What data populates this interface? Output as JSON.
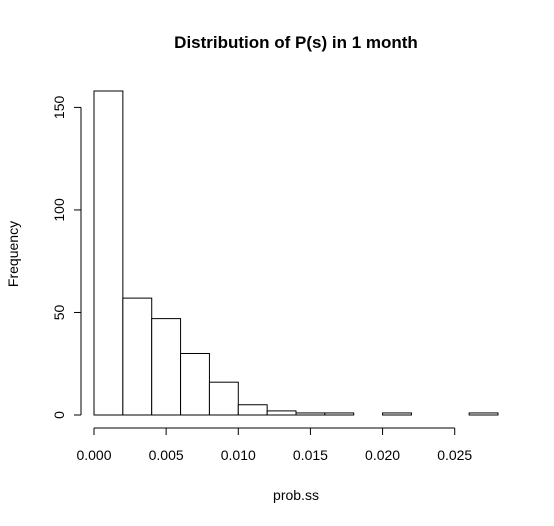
{
  "chart_data": {
    "type": "histogram",
    "title": "Distribution of P(s) in 1 month",
    "xlabel": "prob.ss",
    "ylabel": "Frequency",
    "bin_width": 0.002,
    "bins": [
      {
        "x0": 0.0,
        "x1": 0.002,
        "count": 158
      },
      {
        "x0": 0.002,
        "x1": 0.004,
        "count": 57
      },
      {
        "x0": 0.004,
        "x1": 0.006,
        "count": 47
      },
      {
        "x0": 0.006,
        "x1": 0.008,
        "count": 30
      },
      {
        "x0": 0.008,
        "x1": 0.01,
        "count": 16
      },
      {
        "x0": 0.01,
        "x1": 0.012,
        "count": 5
      },
      {
        "x0": 0.012,
        "x1": 0.014,
        "count": 2
      },
      {
        "x0": 0.014,
        "x1": 0.016,
        "count": 1
      },
      {
        "x0": 0.016,
        "x1": 0.018,
        "count": 1
      },
      {
        "x0": 0.018,
        "x1": 0.02,
        "count": 0
      },
      {
        "x0": 0.02,
        "x1": 0.022,
        "count": 1
      },
      {
        "x0": 0.022,
        "x1": 0.024,
        "count": 0
      },
      {
        "x0": 0.024,
        "x1": 0.026,
        "count": 0
      },
      {
        "x0": 0.026,
        "x1": 0.028,
        "count": 1
      }
    ],
    "xlim": [
      0,
      0.028
    ],
    "ylim": [
      0,
      158
    ],
    "x_ticks": [
      0.0,
      0.005,
      0.01,
      0.015,
      0.02,
      0.025
    ],
    "x_tick_labels": [
      "0.000",
      "0.005",
      "0.010",
      "0.015",
      "0.020",
      "0.025"
    ],
    "y_ticks": [
      0,
      50,
      100,
      150
    ],
    "y_tick_labels": [
      "0",
      "50",
      "100",
      "150"
    ],
    "grid": false,
    "legend": "none",
    "bar_fill": "#ffffff",
    "bar_stroke": "#000000"
  }
}
